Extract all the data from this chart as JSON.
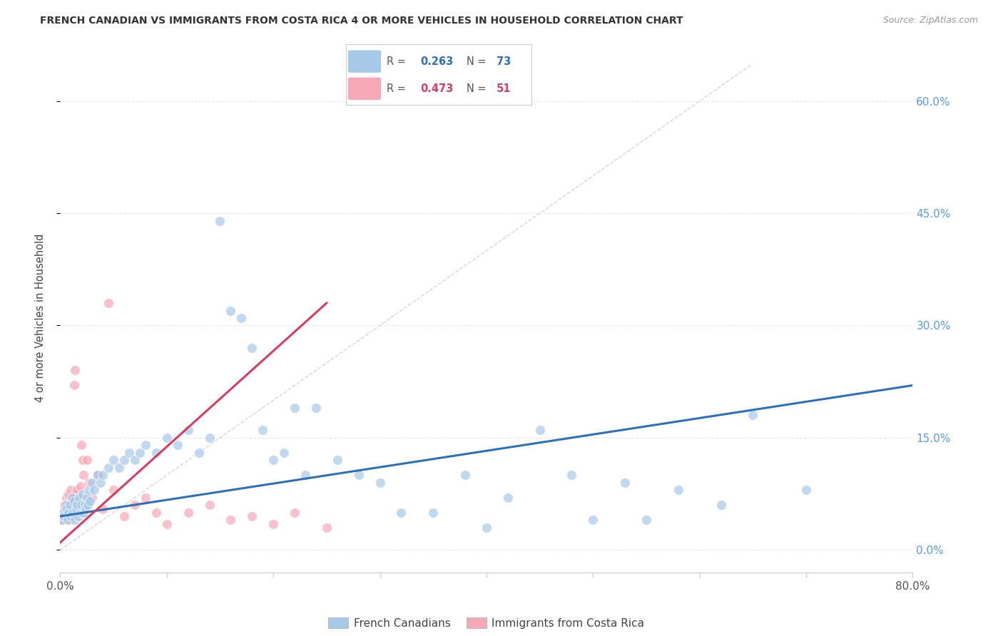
{
  "title": "FRENCH CANADIAN VS IMMIGRANTS FROM COSTA RICA 4 OR MORE VEHICLES IN HOUSEHOLD CORRELATION CHART",
  "source": "Source: ZipAtlas.com",
  "ylabel": "4 or more Vehicles in Household",
  "ytick_vals": [
    0.0,
    15.0,
    30.0,
    45.0,
    60.0
  ],
  "xlim": [
    0.0,
    80.0
  ],
  "ylim": [
    -3.0,
    65.0
  ],
  "legend_blue_r": "0.263",
  "legend_blue_n": "73",
  "legend_pink_r": "0.473",
  "legend_pink_n": "51",
  "blue_color": "#a8c8e8",
  "pink_color": "#f4a8b8",
  "blue_line_color": "#3070b0",
  "pink_line_color": "#d04060",
  "diagonal_color": "#cccccc",
  "background_color": "#ffffff",
  "grid_color": "#e8e8e8",
  "blue_scatter_x": [
    0.2,
    0.3,
    0.4,
    0.5,
    0.6,
    0.7,
    0.8,
    0.9,
    1.0,
    1.1,
    1.2,
    1.3,
    1.4,
    1.5,
    1.6,
    1.7,
    1.8,
    1.9,
    2.0,
    2.1,
    2.2,
    2.3,
    2.4,
    2.5,
    2.6,
    2.7,
    2.8,
    3.0,
    3.2,
    3.5,
    3.8,
    4.0,
    4.5,
    5.0,
    5.5,
    6.0,
    6.5,
    7.0,
    7.5,
    8.0,
    9.0,
    10.0,
    11.0,
    12.0,
    13.0,
    14.0,
    15.0,
    16.0,
    17.0,
    18.0,
    19.0,
    20.0,
    21.0,
    22.0,
    23.0,
    24.0,
    26.0,
    28.0,
    30.0,
    32.0,
    35.0,
    38.0,
    40.0,
    42.0,
    45.0,
    48.0,
    50.0,
    53.0,
    55.0,
    58.0,
    62.0,
    65.0,
    70.0
  ],
  "blue_scatter_y": [
    4.0,
    5.0,
    4.5,
    6.0,
    5.5,
    4.0,
    5.0,
    6.0,
    4.5,
    7.0,
    5.0,
    6.5,
    4.0,
    5.5,
    6.0,
    4.5,
    7.0,
    5.0,
    6.0,
    7.5,
    5.0,
    6.0,
    5.5,
    7.0,
    6.0,
    8.0,
    6.5,
    9.0,
    8.0,
    10.0,
    9.0,
    10.0,
    11.0,
    12.0,
    11.0,
    12.0,
    13.0,
    12.0,
    13.0,
    14.0,
    13.0,
    15.0,
    14.0,
    16.0,
    13.0,
    15.0,
    44.0,
    32.0,
    31.0,
    27.0,
    16.0,
    12.0,
    13.0,
    19.0,
    10.0,
    19.0,
    12.0,
    10.0,
    9.0,
    5.0,
    5.0,
    10.0,
    3.0,
    7.0,
    16.0,
    10.0,
    4.0,
    9.0,
    4.0,
    8.0,
    6.0,
    18.0,
    8.0
  ],
  "pink_scatter_x": [
    0.1,
    0.2,
    0.3,
    0.4,
    0.4,
    0.5,
    0.6,
    0.6,
    0.7,
    0.7,
    0.8,
    0.8,
    0.9,
    0.9,
    1.0,
    1.0,
    1.1,
    1.2,
    1.2,
    1.3,
    1.3,
    1.4,
    1.4,
    1.5,
    1.6,
    1.7,
    1.8,
    1.9,
    2.0,
    2.1,
    2.2,
    2.3,
    2.5,
    2.7,
    3.0,
    3.5,
    4.0,
    4.5,
    5.0,
    6.0,
    7.0,
    8.0,
    9.0,
    10.0,
    12.0,
    14.0,
    16.0,
    18.0,
    20.0,
    22.0,
    25.0
  ],
  "pink_scatter_y": [
    4.0,
    4.5,
    5.0,
    5.5,
    6.0,
    4.0,
    5.0,
    7.0,
    4.5,
    6.0,
    5.0,
    7.5,
    6.0,
    4.0,
    8.0,
    5.0,
    6.5,
    7.0,
    5.5,
    6.0,
    22.0,
    7.5,
    24.0,
    5.0,
    8.0,
    7.0,
    6.0,
    8.5,
    14.0,
    12.0,
    10.0,
    5.0,
    12.0,
    9.0,
    7.0,
    10.0,
    5.5,
    33.0,
    8.0,
    4.5,
    6.0,
    7.0,
    5.0,
    3.5,
    5.0,
    6.0,
    4.0,
    4.5,
    3.5,
    5.0,
    3.0
  ],
  "blue_trendline_x": [
    0.0,
    80.0
  ],
  "blue_trendline_y": [
    4.5,
    22.0
  ],
  "pink_trendline_x": [
    0.0,
    25.0
  ],
  "pink_trendline_y": [
    1.0,
    33.0
  ]
}
